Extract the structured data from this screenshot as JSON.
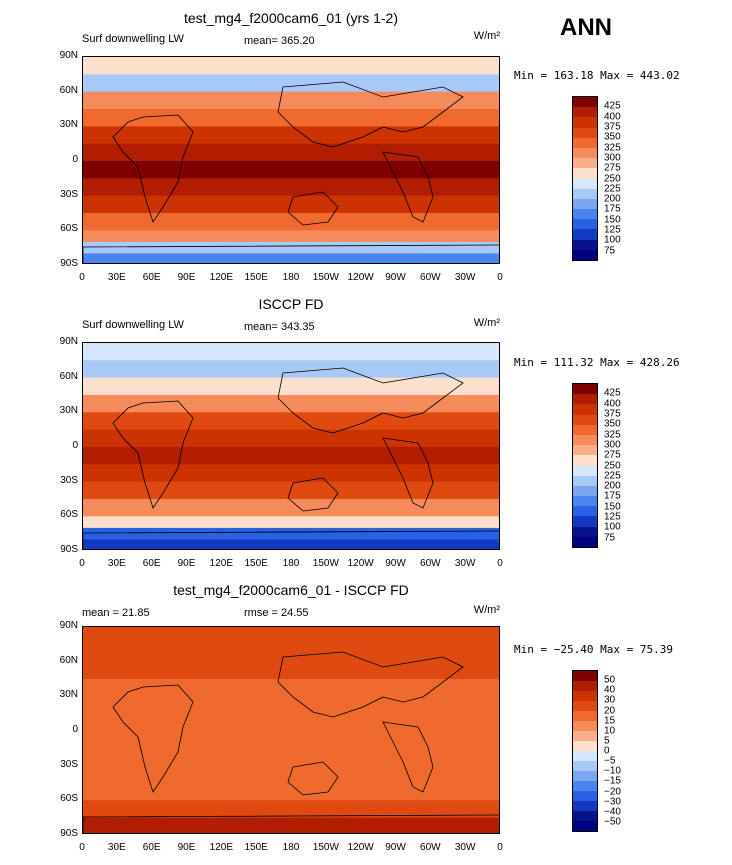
{
  "season": "ANN",
  "chart_data": [
    {
      "type": "heatmap",
      "title": "test_mg4_f2000cam6_01 (yrs 1-2)",
      "variable": "Surf downwelling LW",
      "stats": {
        "left": "Surf downwelling LW",
        "mean": "mean= 365.20",
        "rmse": ""
      },
      "units": "W/m²",
      "min_max": "Min = 163.18 Max = 443.02",
      "colorbar_levels": [
        "425",
        "400",
        "375",
        "350",
        "325",
        "300",
        "275",
        "250",
        "225",
        "200",
        "175",
        "150",
        "125",
        "100",
        "75"
      ],
      "colors": [
        "#7f0000",
        "#b01d00",
        "#cc3300",
        "#e04a10",
        "#f06a30",
        "#f58a5a",
        "#f9ae8a",
        "#fde0cc",
        "#d6e6fb",
        "#a8c8f5",
        "#7aa7f0",
        "#4b84ec",
        "#2861e4",
        "#1438c2",
        "#08128a",
        "#000080"
      ],
      "xlabels": [
        "0",
        "30E",
        "60E",
        "90E",
        "120E",
        "150E",
        "180",
        "150W",
        "120W",
        "90W",
        "60W",
        "30W",
        "0"
      ],
      "ylabels": [
        "90N",
        "60N",
        "30N",
        "0",
        "30S",
        "60S",
        "90S"
      ],
      "zonal_profile": [
        {
          "lat": 90,
          "level": 7
        },
        {
          "lat": 75,
          "level": 9
        },
        {
          "lat": 60,
          "level": 5
        },
        {
          "lat": 45,
          "level": 4
        },
        {
          "lat": 30,
          "level": 2
        },
        {
          "lat": 15,
          "level": 1
        },
        {
          "lat": 0,
          "level": 0
        },
        {
          "lat": -15,
          "level": 1
        },
        {
          "lat": -30,
          "level": 2
        },
        {
          "lat": -45,
          "level": 4
        },
        {
          "lat": -60,
          "level": 5
        },
        {
          "lat": -70,
          "level": 9
        },
        {
          "lat": -80,
          "level": 11
        },
        {
          "lat": -90,
          "level": 12
        }
      ]
    },
    {
      "type": "heatmap",
      "title": "ISCCP FD",
      "variable": "Surf downwelling LW",
      "stats": {
        "left": "Surf downwelling LW",
        "mean": "mean= 343.35",
        "rmse": ""
      },
      "units": "W/m²",
      "min_max": "Min = 111.32 Max = 428.26",
      "colorbar_levels": [
        "425",
        "400",
        "375",
        "350",
        "325",
        "300",
        "275",
        "250",
        "225",
        "200",
        "175",
        "150",
        "125",
        "100",
        "75"
      ],
      "colors": [
        "#7f0000",
        "#b01d00",
        "#cc3300",
        "#e04a10",
        "#f06a30",
        "#f58a5a",
        "#f9ae8a",
        "#fde0cc",
        "#d6e6fb",
        "#a8c8f5",
        "#7aa7f0",
        "#4b84ec",
        "#2861e4",
        "#1438c2",
        "#08128a",
        "#000080"
      ],
      "xlabels": [
        "0",
        "30E",
        "60E",
        "90E",
        "120E",
        "150E",
        "180",
        "150W",
        "120W",
        "90W",
        "60W",
        "30W",
        "0"
      ],
      "ylabels": [
        "90N",
        "60N",
        "30N",
        "0",
        "30S",
        "60S",
        "90S"
      ],
      "zonal_profile": [
        {
          "lat": 90,
          "level": 8
        },
        {
          "lat": 75,
          "level": 9
        },
        {
          "lat": 60,
          "level": 7
        },
        {
          "lat": 45,
          "level": 5
        },
        {
          "lat": 30,
          "level": 3
        },
        {
          "lat": 15,
          "level": 2
        },
        {
          "lat": 0,
          "level": 1
        },
        {
          "lat": -15,
          "level": 2
        },
        {
          "lat": -30,
          "level": 3
        },
        {
          "lat": -45,
          "level": 5
        },
        {
          "lat": -60,
          "level": 7
        },
        {
          "lat": -70,
          "level": 12
        },
        {
          "lat": -80,
          "level": 13
        },
        {
          "lat": -90,
          "level": 14
        }
      ]
    },
    {
      "type": "heatmap",
      "title": "test_mg4_f2000cam6_01 - ISCCP FD",
      "variable": "",
      "stats": {
        "left": "mean =  21.85",
        "mean": "",
        "rmse": "rmse =  24.55"
      },
      "units": "W/m²",
      "min_max": "Min = −25.40 Max =  75.39",
      "colorbar_levels": [
        "50",
        "40",
        "30",
        "20",
        "15",
        "10",
        "5",
        "0",
        "−5",
        "−10",
        "−15",
        "−20",
        "−30",
        "−40",
        "−50"
      ],
      "colors": [
        "#7f0000",
        "#b01d00",
        "#cc3300",
        "#e04a10",
        "#f06a30",
        "#f58a5a",
        "#f9ae8a",
        "#fde0cc",
        "#d6e6fb",
        "#a8c8f5",
        "#7aa7f0",
        "#4b84ec",
        "#2861e4",
        "#1438c2",
        "#08128a",
        "#000080"
      ],
      "xlabels": [
        "0",
        "30E",
        "60E",
        "90E",
        "120E",
        "150E",
        "180",
        "150W",
        "120W",
        "90W",
        "60W",
        "30W",
        "0"
      ],
      "ylabels": [
        "90N",
        "60N",
        "30N",
        "0",
        "30S",
        "60S",
        "90S"
      ],
      "zonal_profile": [
        {
          "lat": 90,
          "level": 3
        },
        {
          "lat": 75,
          "level": 3
        },
        {
          "lat": 60,
          "level": 3
        },
        {
          "lat": 45,
          "level": 4
        },
        {
          "lat": 30,
          "level": 4
        },
        {
          "lat": 15,
          "level": 4
        },
        {
          "lat": 0,
          "level": 4
        },
        {
          "lat": -15,
          "level": 4
        },
        {
          "lat": -30,
          "level": 4
        },
        {
          "lat": -45,
          "level": 4
        },
        {
          "lat": -60,
          "level": 3
        },
        {
          "lat": -75,
          "level": 1
        },
        {
          "lat": -90,
          "level": 0
        }
      ]
    }
  ]
}
